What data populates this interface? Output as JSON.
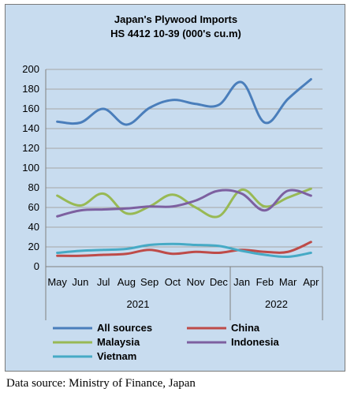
{
  "chart_data": {
    "type": "line",
    "title": "Japan's Plywood Imports",
    "subtitle": "HS 4412 10-39  (000's cu.m)",
    "categories": [
      "May",
      "Jun",
      "Jul",
      "Aug",
      "Sep",
      "Oct",
      "Nov",
      "Dec",
      "Jan",
      "Feb",
      "Mar",
      "Apr"
    ],
    "year_groups": [
      {
        "label": "2021",
        "count": 8
      },
      {
        "label": "2022",
        "count": 4
      }
    ],
    "ylim": [
      0,
      200
    ],
    "yticks": [
      0,
      20,
      40,
      60,
      80,
      100,
      120,
      140,
      160,
      180,
      200
    ],
    "grid": true,
    "legend_position": "bottom",
    "series": [
      {
        "name": "All sources",
        "color": "#4a7ebb",
        "values": [
          147,
          146,
          160,
          144,
          161,
          169,
          165,
          164,
          187,
          146,
          170,
          190
        ]
      },
      {
        "name": "China",
        "color": "#be4b48",
        "values": [
          11,
          11,
          12,
          13,
          17,
          13,
          15,
          14,
          17,
          15,
          15,
          25
        ]
      },
      {
        "name": "Malaysia",
        "color": "#98b954",
        "values": [
          72,
          62,
          74,
          54,
          61,
          73,
          60,
          51,
          78,
          61,
          70,
          79
        ]
      },
      {
        "name": "Indonesia",
        "color": "#7d60a0",
        "values": [
          51,
          57,
          58,
          59,
          61,
          61,
          67,
          77,
          74,
          57,
          77,
          72
        ]
      },
      {
        "name": "Vietnam",
        "color": "#46aac5",
        "values": [
          14,
          16,
          17,
          18,
          22,
          23,
          22,
          21,
          16,
          12,
          10,
          14
        ]
      }
    ]
  },
  "footer": {
    "source": "Data source: Ministry of Finance, Japan"
  }
}
